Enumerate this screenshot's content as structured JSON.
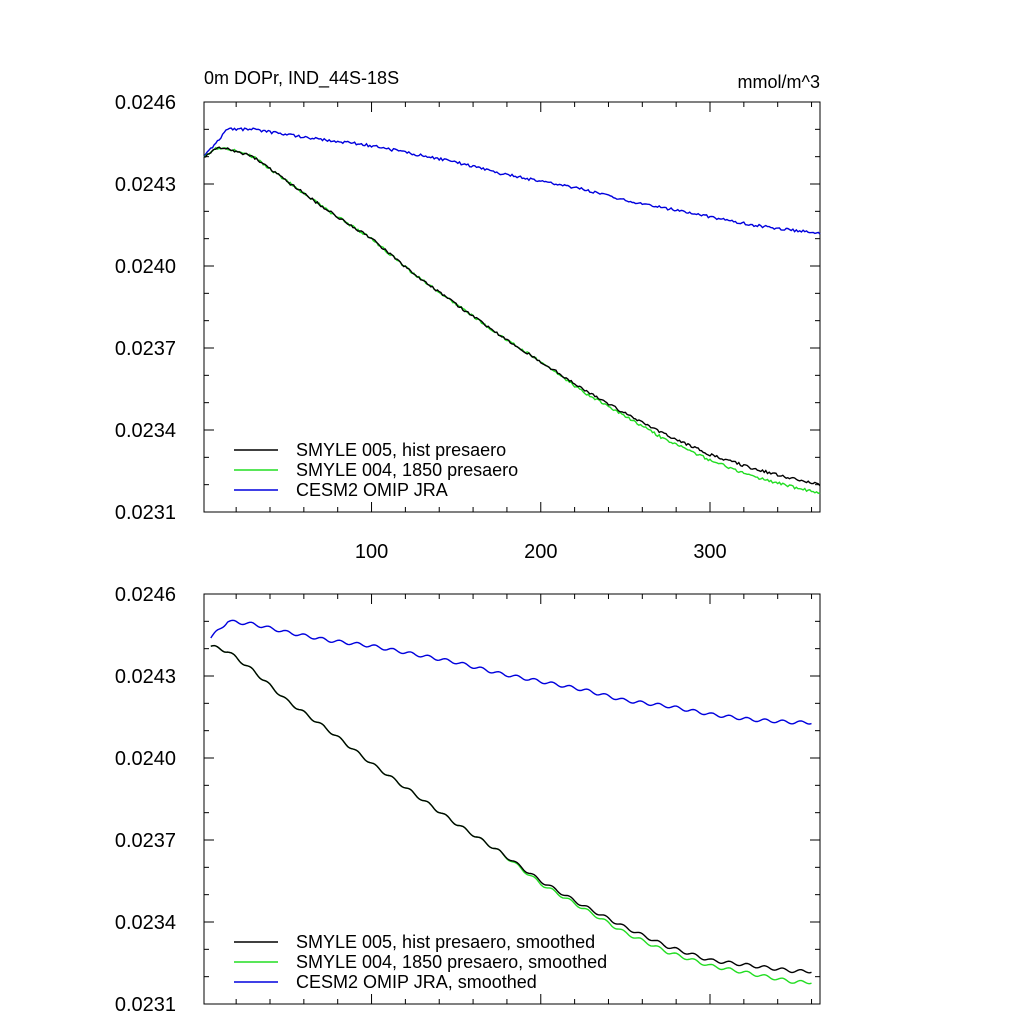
{
  "chart_data": [
    {
      "type": "line",
      "title": "0m DOPr, IND_44S-18S",
      "units": "mmol/m^3",
      "xlim": [
        1,
        365
      ],
      "ylim": [
        0.0231,
        0.0246
      ],
      "xticks": [
        100,
        200,
        300
      ],
      "xtick_labels": [
        "100",
        "200",
        "300"
      ],
      "yticks": [
        0.0231,
        0.0234,
        0.0237,
        0.024,
        0.0243,
        0.0246
      ],
      "ytick_labels": [
        "0.0231",
        "0.0234",
        "0.0237",
        "0.0240",
        "0.0243",
        "0.0246"
      ],
      "legend_position": "bottom-left",
      "series": [
        {
          "name": "SMYLE 005, hist presaero",
          "color": "#000000",
          "x": [
            1,
            8,
            15,
            30,
            50,
            75,
            100,
            125,
            150,
            175,
            200,
            225,
            250,
            275,
            300,
            325,
            350,
            365
          ],
          "y": [
            0.0244,
            0.02443,
            0.02443,
            0.0244,
            0.02431,
            0.0242,
            0.0241,
            0.02397,
            0.02386,
            0.02375,
            0.02365,
            0.02355,
            0.02346,
            0.02338,
            0.02331,
            0.02326,
            0.02322,
            0.0232
          ]
        },
        {
          "name": "SMYLE 004, 1850 presaero",
          "color": "#22dd22",
          "x": [
            1,
            8,
            15,
            30,
            50,
            75,
            100,
            125,
            150,
            175,
            200,
            225,
            250,
            275,
            300,
            325,
            350,
            365
          ],
          "y": [
            0.0244,
            0.02443,
            0.02443,
            0.0244,
            0.02431,
            0.0242,
            0.0241,
            0.02397,
            0.02386,
            0.02375,
            0.02365,
            0.02354,
            0.02345,
            0.02336,
            0.02329,
            0.02323,
            0.02319,
            0.02317
          ]
        },
        {
          "name": "CESM2 OMIP JRA",
          "color": "#0000dd",
          "x": [
            1,
            8,
            15,
            30,
            50,
            75,
            100,
            125,
            150,
            175,
            200,
            225,
            250,
            275,
            300,
            325,
            350,
            365
          ],
          "y": [
            0.0244,
            0.02445,
            0.0245,
            0.0245,
            0.02448,
            0.02446,
            0.02444,
            0.02441,
            0.02438,
            0.02434,
            0.02431,
            0.02428,
            0.02424,
            0.02421,
            0.02418,
            0.02415,
            0.02413,
            0.02412
          ]
        }
      ]
    },
    {
      "type": "line",
      "title": "",
      "units": "",
      "xlim": [
        1,
        365
      ],
      "ylim": [
        0.0231,
        0.0246
      ],
      "xticks": [
        100,
        200,
        300
      ],
      "xtick_labels": [],
      "yticks": [
        0.0231,
        0.0234,
        0.0237,
        0.024,
        0.0243,
        0.0246
      ],
      "ytick_labels": [
        "0.0231",
        "0.0234",
        "0.0237",
        "0.0240",
        "0.0243",
        "0.0246"
      ],
      "legend_position": "bottom-left",
      "series": [
        {
          "name": "SMYLE 005, hist presaero, smoothed",
          "color": "#000000",
          "x": [
            5,
            15,
            30,
            50,
            75,
            100,
            125,
            150,
            175,
            200,
            225,
            250,
            275,
            300,
            325,
            350,
            360
          ],
          "y": [
            0.02441,
            0.02439,
            0.02432,
            0.02421,
            0.0241,
            0.02398,
            0.02387,
            0.02376,
            0.02366,
            0.02355,
            0.02346,
            0.02338,
            0.02331,
            0.02326,
            0.02324,
            0.02322,
            0.02322
          ]
        },
        {
          "name": "SMYLE 004, 1850 presaero, smoothed",
          "color": "#22dd22",
          "x": [
            5,
            15,
            30,
            50,
            75,
            100,
            125,
            150,
            175,
            200,
            225,
            250,
            275,
            300,
            325,
            350,
            360
          ],
          "y": [
            0.02441,
            0.02439,
            0.02432,
            0.02421,
            0.0241,
            0.02398,
            0.02387,
            0.02376,
            0.02366,
            0.02354,
            0.02345,
            0.02336,
            0.02329,
            0.02324,
            0.02321,
            0.02318,
            0.02318
          ]
        },
        {
          "name": "CESM2 OMIP JRA, smoothed",
          "color": "#0000dd",
          "x": [
            5,
            15,
            30,
            50,
            75,
            100,
            125,
            150,
            175,
            200,
            225,
            250,
            275,
            300,
            325,
            350,
            360
          ],
          "y": [
            0.02444,
            0.0245,
            0.02449,
            0.02446,
            0.02443,
            0.02441,
            0.02438,
            0.02435,
            0.02431,
            0.02428,
            0.02425,
            0.02421,
            0.02419,
            0.02416,
            0.02414,
            0.02413,
            0.02413
          ]
        }
      ]
    }
  ]
}
